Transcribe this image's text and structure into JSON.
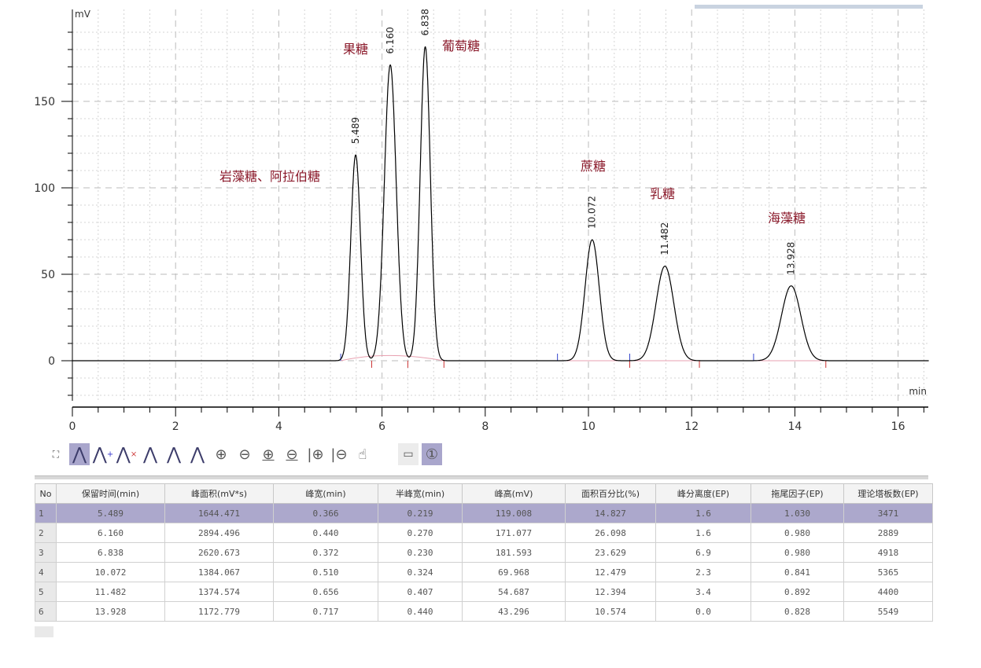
{
  "chart_data": {
    "type": "line",
    "ylabel": "mV",
    "xlabel": "min",
    "xlim": [
      0,
      16.6
    ],
    "ylim": [
      -22,
      200
    ],
    "xticks": [
      0,
      2,
      4,
      6,
      8,
      10,
      12,
      14,
      16
    ],
    "yticks": [
      0,
      50,
      100,
      150
    ],
    "grid": true,
    "colors": {
      "trace": "#000000",
      "compound_label": "#8b1a2b",
      "baseline": "#e8a0b0",
      "start_marker": "#3344cc",
      "end_marker": "#cc3333"
    },
    "peaks": [
      {
        "rt": 5.489,
        "rt_label": "5.489",
        "height": 119.008,
        "half_width": 0.219,
        "name": "岩藻糖、阿拉伯糖"
      },
      {
        "rt": 6.16,
        "rt_label": "6.160",
        "height": 171.077,
        "half_width": 0.27,
        "name": "果糖"
      },
      {
        "rt": 6.838,
        "rt_label": "6.838",
        "height": 181.593,
        "half_width": 0.23,
        "name": "葡萄糖"
      },
      {
        "rt": 10.072,
        "rt_label": "10.072",
        "height": 69.968,
        "half_width": 0.324,
        "name": "蔗糖"
      },
      {
        "rt": 11.482,
        "rt_label": "11.482",
        "height": 54.687,
        "half_width": 0.407,
        "name": "乳糖"
      },
      {
        "rt": 13.928,
        "rt_label": "13.928",
        "height": 43.296,
        "half_width": 0.44,
        "name": "海藻糖"
      }
    ]
  },
  "toolbar": {
    "icons": [
      "fit-view-icon",
      "peak-icon",
      "add-peak-icon",
      "delete-peak-icon",
      "split-peak-icon",
      "baseline-icon",
      "manual-integration-icon",
      "zoom-in-icon",
      "zoom-out-icon",
      "zoom-in-y-icon",
      "zoom-out-y-icon",
      "zoom-in-x-icon",
      "zoom-out-x-icon",
      "pan-hand-icon",
      "ruler-icon",
      "info-icon"
    ],
    "active": [
      "peak-icon",
      "info-icon"
    ]
  },
  "table": {
    "headers": [
      "No",
      "保留时间(min)",
      "峰面积(mV*s)",
      "峰宽(min)",
      "半峰宽(min)",
      "峰高(mV)",
      "面积百分比(%)",
      "峰分离度(EP)",
      "拖尾因子(EP)",
      "理论塔板数(EP)"
    ],
    "selected_row": 1,
    "rows": [
      [
        "1",
        "5.489",
        "1644.471",
        "0.366",
        "0.219",
        "119.008",
        "14.827",
        "1.6",
        "1.030",
        "3471"
      ],
      [
        "2",
        "6.160",
        "2894.496",
        "0.440",
        "0.270",
        "171.077",
        "26.098",
        "1.6",
        "0.980",
        "2889"
      ],
      [
        "3",
        "6.838",
        "2620.673",
        "0.372",
        "0.230",
        "181.593",
        "23.629",
        "6.9",
        "0.980",
        "4918"
      ],
      [
        "4",
        "10.072",
        "1384.067",
        "0.510",
        "0.324",
        "69.968",
        "12.479",
        "2.3",
        "0.841",
        "5365"
      ],
      [
        "5",
        "11.482",
        "1374.574",
        "0.656",
        "0.407",
        "54.687",
        "12.394",
        "3.4",
        "0.892",
        "4400"
      ],
      [
        "6",
        "13.928",
        "1172.779",
        "0.717",
        "0.440",
        "43.296",
        "10.574",
        "0.0",
        "0.828",
        "5549"
      ]
    ]
  }
}
